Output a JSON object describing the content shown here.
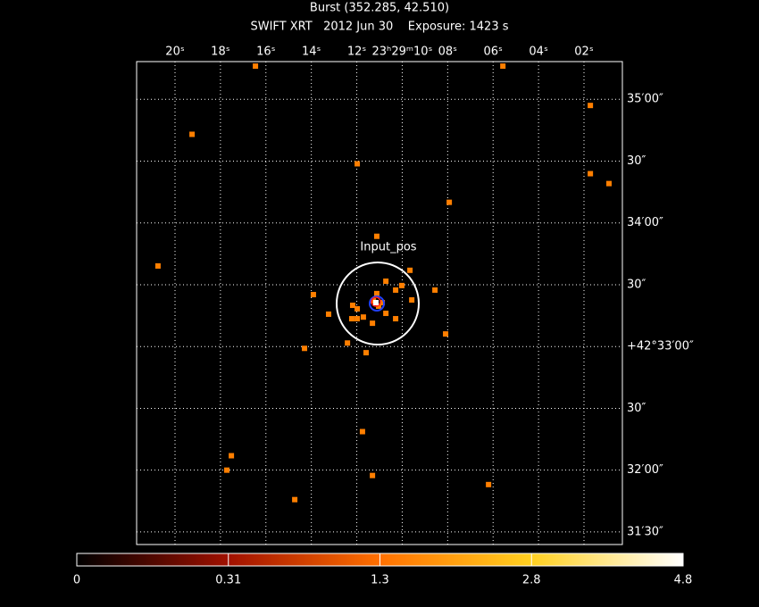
{
  "chart_data": {
    "type": "scatter",
    "title": "Burst (352.285, 42.510)",
    "subtitle": "SWIFT XRT   2012 Jun 30    Exposure: 1423 s",
    "annotation": "Input_pos",
    "series": [
      {
        "color": "#ff7f00",
        "x": [
          16.46,
          5.57,
          1.72,
          19.25,
          11.98,
          1.72,
          0.9,
          7.93,
          20.75,
          11.12,
          9.66,
          10.72,
          10.02,
          10.29,
          8.56,
          13.91,
          11.12,
          9.58,
          12.18,
          11.98,
          13.24,
          12.22,
          11.98,
          11.71,
          11.31,
          10.29,
          10.72,
          8.09,
          12.41,
          14.3,
          11.59,
          11.75,
          17.52,
          17.72,
          11.31,
          6.2,
          14.73,
          11.04,
          11.27,
          10.88
        ],
        "values": [
          256.1,
          256.1,
          237.0,
          223.0,
          208.7,
          203.9,
          199.1,
          190.0,
          159.1,
          173.5,
          157.0,
          151.7,
          149.6,
          147.4,
          147.4,
          145.2,
          145.7,
          142.6,
          140.0,
          138.3,
          135.7,
          133.5,
          133.5,
          134.3,
          131.3,
          133.5,
          136.1,
          126.1,
          121.7,
          119.1,
          117.0,
          78.7,
          67.0,
          60.0,
          57.4,
          53.0,
          45.7,
          139.6,
          142.2,
          141.3
        ]
      }
    ],
    "xlim": [
      21.69,
      0.31
    ],
    "xticks": [
      {
        "value": 20,
        "label": "20ˢ"
      },
      {
        "value": 18,
        "label": "18ˢ"
      },
      {
        "value": 16,
        "label": "16ˢ"
      },
      {
        "value": 14,
        "label": "14ˢ"
      },
      {
        "value": 12,
        "label": "12ˢ"
      },
      {
        "value": 10,
        "label": "23ʰ29ᵐ10ˢ"
      },
      {
        "value": 8,
        "label": "08ˢ"
      },
      {
        "value": 6,
        "label": "06ˢ"
      },
      {
        "value": 4,
        "label": "04ˢ"
      },
      {
        "value": 2,
        "label": "02ˢ"
      }
    ],
    "ylim": [
      23.9,
      258.3
    ],
    "yticks": [
      {
        "value": 30,
        "label": "31′30″"
      },
      {
        "value": 60,
        "label": "32′00″"
      },
      {
        "value": 90,
        "label": "30″"
      },
      {
        "value": 120,
        "label": "+42°33′00″"
      },
      {
        "value": 150,
        "label": "30″"
      },
      {
        "value": 180,
        "label": "34′00″"
      },
      {
        "value": 210,
        "label": "30″"
      },
      {
        "value": 240,
        "label": "35′00″"
      }
    ],
    "grid": true,
    "colorbar_ticks": [
      0,
      0.31,
      1.3,
      2.8,
      4.8
    ]
  }
}
